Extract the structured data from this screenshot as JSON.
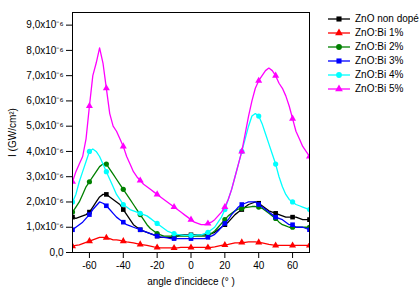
{
  "chart_data": {
    "type": "line",
    "xlabel": "angle d'incidece (° )",
    "ylabel": "I (GW/cm²)",
    "xlim": [
      -70,
      70
    ],
    "xticks": [
      -60,
      -40,
      -20,
      0,
      20,
      40,
      60
    ],
    "ylim": [
      0,
      9.5e-06
    ],
    "yticks": [
      {
        "value": 0.0,
        "label": "0,0"
      },
      {
        "value": 1e-06,
        "label": "1,0x10⁻⁶"
      },
      {
        "value": 2e-06,
        "label": "2,0x10⁻⁶"
      },
      {
        "value": 3e-06,
        "label": "3,0x10⁻⁶"
      },
      {
        "value": 4e-06,
        "label": "4,0x10⁻⁶"
      },
      {
        "value": 5e-06,
        "label": "5,0x10⁻⁶"
      },
      {
        "value": 6e-06,
        "label": "6,0x10⁻⁶"
      },
      {
        "value": 7e-06,
        "label": "7,0x10⁻⁶"
      },
      {
        "value": 8e-06,
        "label": "8,0x10⁻⁶"
      },
      {
        "value": 9e-06,
        "label": "9,0x10⁻⁶"
      }
    ],
    "legend": "upper right",
    "x": [
      -70,
      -68,
      -66,
      -64,
      -62,
      -60,
      -58,
      -56,
      -54,
      -52,
      -50,
      -48,
      -46,
      -44,
      -42,
      -40,
      -38,
      -36,
      -34,
      -32,
      -30,
      -28,
      -26,
      -24,
      -22,
      -20,
      -18,
      -16,
      -14,
      -12,
      -10,
      -8,
      -6,
      -4,
      -2,
      0,
      2,
      4,
      6,
      8,
      10,
      12,
      14,
      16,
      18,
      20,
      22,
      24,
      26,
      28,
      30,
      32,
      34,
      36,
      38,
      40,
      42,
      44,
      46,
      48,
      50,
      52,
      54,
      56,
      58,
      60,
      62,
      64,
      66,
      68,
      70
    ],
    "series": [
      {
        "name": "ZnO non dopé",
        "color": "black",
        "marker": "square",
        "line_style": "solid",
        "values": [
          1.4e-06,
          1.35e-06,
          1.4e-06,
          1.45e-06,
          1.5e-06,
          1.6e-06,
          1.8e-06,
          2e-06,
          2.2e-06,
          2.3e-06,
          2.3e-06,
          2.2e-06,
          2.1e-06,
          2e-06,
          1.9e-06,
          1.7e-06,
          1.5e-06,
          1.3e-06,
          1.1e-06,
          1e-06,
          9e-07,
          8.5e-07,
          8e-07,
          7.5e-07,
          7e-07,
          6.5e-07,
          6e-07,
          6e-07,
          6e-07,
          6e-07,
          6e-07,
          6.5e-07,
          7e-07,
          7e-07,
          7e-07,
          7e-07,
          7e-07,
          7e-07,
          7e-07,
          7e-07,
          7.2e-07,
          7.5e-07,
          8e-07,
          9e-07,
          1e-06,
          1.1e-06,
          1.2e-06,
          1.35e-06,
          1.5e-06,
          1.6e-06,
          1.7e-06,
          1.8e-06,
          1.9e-06,
          1.95e-06,
          2e-06,
          1.95e-06,
          1.85e-06,
          1.75e-06,
          1.65e-06,
          1.6e-06,
          1.55e-06,
          1.5e-06,
          1.45e-06,
          1.4e-06,
          1.4e-06,
          1.4e-06,
          1.4e-06,
          1.35e-06,
          1.3e-06,
          1.3e-06,
          1.3e-06
        ]
      },
      {
        "name": "ZnO:Bi 1%",
        "color": "red",
        "marker": "triangle",
        "line_style": "solid",
        "values": [
          2.5e-07,
          2.8e-07,
          3e-07,
          3.5e-07,
          4e-07,
          4.5e-07,
          5e-07,
          5.5e-07,
          6e-07,
          6e-07,
          5.8e-07,
          5.5e-07,
          5e-07,
          5e-07,
          4.8e-07,
          4.5e-07,
          4.2e-07,
          4e-07,
          3.8e-07,
          3.5e-07,
          3.2e-07,
          3e-07,
          2.8e-07,
          2.5e-07,
          2.2e-07,
          2e-07,
          1.8e-07,
          1.8e-07,
          1.8e-07,
          1.8e-07,
          1.8e-07,
          1.8e-07,
          2e-07,
          2e-07,
          2e-07,
          2e-07,
          2e-07,
          2e-07,
          2e-07,
          2e-07,
          2e-07,
          2e-07,
          2.2e-07,
          2.5e-07,
          2.8e-07,
          3e-07,
          3.2e-07,
          3.5e-07,
          3.8e-07,
          3.8e-07,
          4e-07,
          4e-07,
          4.2e-07,
          4.2e-07,
          4.2e-07,
          4e-07,
          3.8e-07,
          3.5e-07,
          3.2e-07,
          3e-07,
          2.8e-07,
          2.8e-07,
          2.8e-07,
          2.8e-07,
          2.8e-07,
          2.8e-07,
          2.8e-07,
          2.8e-07,
          2.8e-07,
          2.8e-07,
          2.8e-07
        ]
      },
      {
        "name": "ZnO:Bi 2%",
        "color": "green",
        "marker": "circle",
        "line_style": "solid",
        "values": [
          1.6e-06,
          1.8e-06,
          2e-06,
          2.3e-06,
          2.6e-06,
          2.8e-06,
          3e-06,
          3.2e-06,
          3.4e-06,
          3.5e-06,
          3.5e-06,
          3.3e-06,
          3.1e-06,
          2.9e-06,
          2.7e-06,
          2.5e-06,
          2.3e-06,
          2.1e-06,
          1.9e-06,
          1.7e-06,
          1.5e-06,
          1.3e-06,
          1.1e-06,
          9.5e-07,
          8.5e-07,
          7.5e-07,
          7e-07,
          6.5e-07,
          6.5e-07,
          6.5e-07,
          6.5e-07,
          6.5e-07,
          6.5e-07,
          6.5e-07,
          6.5e-07,
          6.5e-07,
          6.5e-07,
          6.5e-07,
          6.5e-07,
          6.5e-07,
          7e-07,
          7.5e-07,
          8.5e-07,
          1e-06,
          1.15e-06,
          1.3e-06,
          1.45e-06,
          1.55e-06,
          1.65e-06,
          1.72e-06,
          1.75e-06,
          1.78e-06,
          1.8e-06,
          1.82e-06,
          1.82e-06,
          1.8e-06,
          1.75e-06,
          1.65e-06,
          1.55e-06,
          1.45e-06,
          1.35e-06,
          1.2e-06,
          1.1e-06,
          1.05e-06,
          1e-06,
          1e-06,
          1e-06,
          1e-06,
          1e-06,
          1e-06,
          1e-06
        ]
      },
      {
        "name": "ZnO:Bi 3%",
        "color": "blue",
        "marker": "square",
        "line_style": "solid",
        "values": [
          9e-07,
          1e-06,
          1.1e-06,
          1.2e-06,
          1.35e-06,
          1.5e-06,
          1.7e-06,
          1.85e-06,
          2e-06,
          1.95e-06,
          1.85e-06,
          1.7e-06,
          1.55e-06,
          1.4e-06,
          1.3e-06,
          1.2e-06,
          1.1e-06,
          1.05e-06,
          1e-06,
          9.5e-07,
          9e-07,
          8.5e-07,
          8e-07,
          7.5e-07,
          7e-07,
          6.5e-07,
          6.2e-07,
          6e-07,
          5.8e-07,
          5.5e-07,
          5.5e-07,
          5.5e-07,
          5.5e-07,
          5.5e-07,
          5.5e-07,
          5.5e-07,
          5.5e-07,
          5.5e-07,
          5.5e-07,
          5.5e-07,
          6e-07,
          6.5e-07,
          7.2e-07,
          8.5e-07,
          1e-06,
          1.15e-06,
          1.3e-06,
          1.5e-06,
          1.65e-06,
          1.8e-06,
          1.9e-06,
          1.95e-06,
          2e-06,
          2e-06,
          2e-06,
          1.9e-06,
          1.8e-06,
          1.7e-06,
          1.6e-06,
          1.5e-06,
          1.4e-06,
          1.35e-06,
          1.3e-06,
          1.2e-06,
          1.1e-06,
          1.1e-06,
          1e-06,
          1e-06,
          1e-06,
          9.5e-07,
          9e-07
        ]
      },
      {
        "name": "ZnO:Bi 4%",
        "color": "cyan",
        "marker": "circle",
        "line_style": "solid",
        "values": [
          2e-06,
          2.3e-06,
          2.8e-06,
          3.2e-06,
          3.6e-06,
          4e-06,
          4.1e-06,
          4e-06,
          3.8e-06,
          3.5e-06,
          3.2e-06,
          2.9e-06,
          2.6e-06,
          2.3e-06,
          2.1e-06,
          1.9e-06,
          1.8e-06,
          1.7e-06,
          1.65e-06,
          1.6e-06,
          1.55e-06,
          1.5e-06,
          1.45e-06,
          1.35e-06,
          1.25e-06,
          1.15e-06,
          1.05e-06,
          9.5e-07,
          8.5e-07,
          8e-07,
          7.5e-07,
          7.2e-07,
          7e-07,
          6.8e-07,
          6.8e-07,
          6.8e-07,
          6.8e-07,
          7e-07,
          7e-07,
          7.5e-07,
          8e-07,
          9e-07,
          1e-06,
          1.2e-06,
          1.4e-06,
          1.7e-06,
          2.1e-06,
          2.5e-06,
          3e-06,
          3.5e-06,
          4e-06,
          4.5e-06,
          5e-06,
          5.4e-06,
          5.5e-06,
          5.4e-06,
          5.1e-06,
          4.7e-06,
          4.3e-06,
          3.9e-06,
          3.5e-06,
          3e-06,
          2.6e-06,
          2.3e-06,
          2.1e-06,
          2e-06,
          1.9e-06,
          1.85e-06,
          1.8e-06,
          1.75e-06,
          1.7e-06
        ]
      },
      {
        "name": "ZnO:Bi 5%",
        "color": "magenta",
        "marker": "triangle",
        "line_style": "solid",
        "values": [
          2.8e-06,
          3.2e-06,
          3.5e-06,
          3.8e-06,
          4.5e-06,
          5.8e-06,
          7e-06,
          7.5e-06,
          8.1e-06,
          7.5e-06,
          6.5e-06,
          5.5e-06,
          5e-06,
          4.8e-06,
          4.5e-06,
          4.2e-06,
          3.8e-06,
          3.5e-06,
          3.2e-06,
          3e-06,
          2.85e-06,
          2.7e-06,
          2.6e-06,
          2.5e-06,
          2.4e-06,
          2.3e-06,
          2.2e-06,
          2.1e-06,
          2e-06,
          1.9e-06,
          1.8e-06,
          1.7e-06,
          1.6e-06,
          1.5e-06,
          1.4e-06,
          1.3e-06,
          1.2e-06,
          1.15e-06,
          1.1e-06,
          1.1e-06,
          1.15e-06,
          1.2e-06,
          1.3e-06,
          1.45e-06,
          1.6e-06,
          1.8e-06,
          2.1e-06,
          2.5e-06,
          3e-06,
          3.5e-06,
          4e-06,
          4.7e-06,
          5.4e-06,
          6e-06,
          6.5e-06,
          6.8e-06,
          7e-06,
          7.2e-06,
          7.3e-06,
          7.2e-06,
          7e-06,
          6.7e-06,
          6.5e-06,
          6.2e-06,
          5.8e-06,
          5.3e-06,
          4.8e-06,
          4.5e-06,
          4.2e-06,
          4e-06,
          3.8e-06
        ]
      }
    ]
  }
}
